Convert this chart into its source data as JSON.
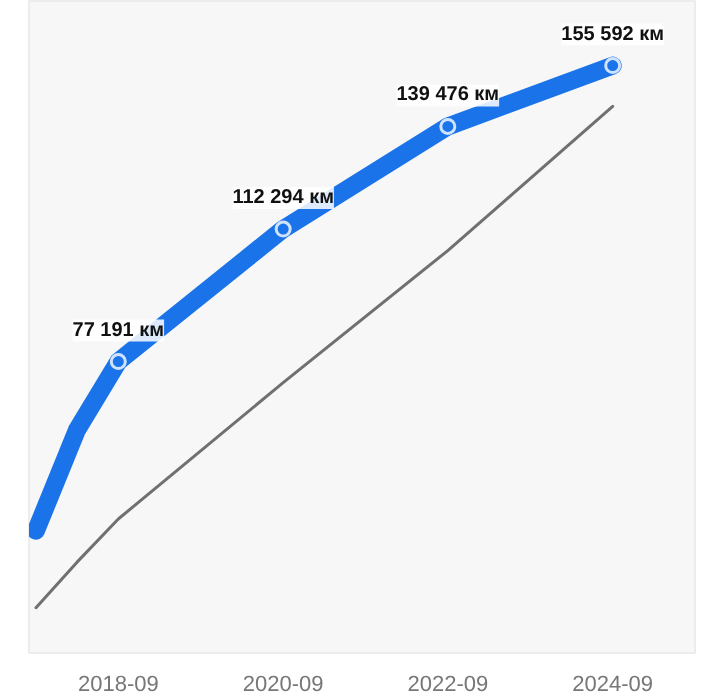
{
  "chart_data": {
    "type": "line",
    "x": [
      "2017-09",
      "2018-03",
      "2018-09",
      "2020-09",
      "2022-09",
      "2024-09"
    ],
    "xlim": [
      "2017-08",
      "2025-09"
    ],
    "xticks": [
      {
        "value": "2018-09",
        "label": "2018-09"
      },
      {
        "value": "2020-09",
        "label": "2020-09"
      },
      {
        "value": "2022-09",
        "label": "2022-09"
      },
      {
        "value": "2024-09",
        "label": "2024-09"
      }
    ],
    "series": [
      {
        "color": "#1a73e8",
        "values": [
          32400,
          59000,
          77191,
          112294,
          139476,
          155592
        ],
        "value_labels": [
          null,
          null,
          "77 191 км",
          "112 294 км",
          "139 476 км",
          "155 592 км"
        ],
        "marker": "circle"
      },
      {
        "color": "#707070",
        "values": [
          12000,
          24000,
          35500,
          71600,
          106600,
          144800
        ],
        "marker": "none"
      }
    ],
    "grid": false
  }
}
